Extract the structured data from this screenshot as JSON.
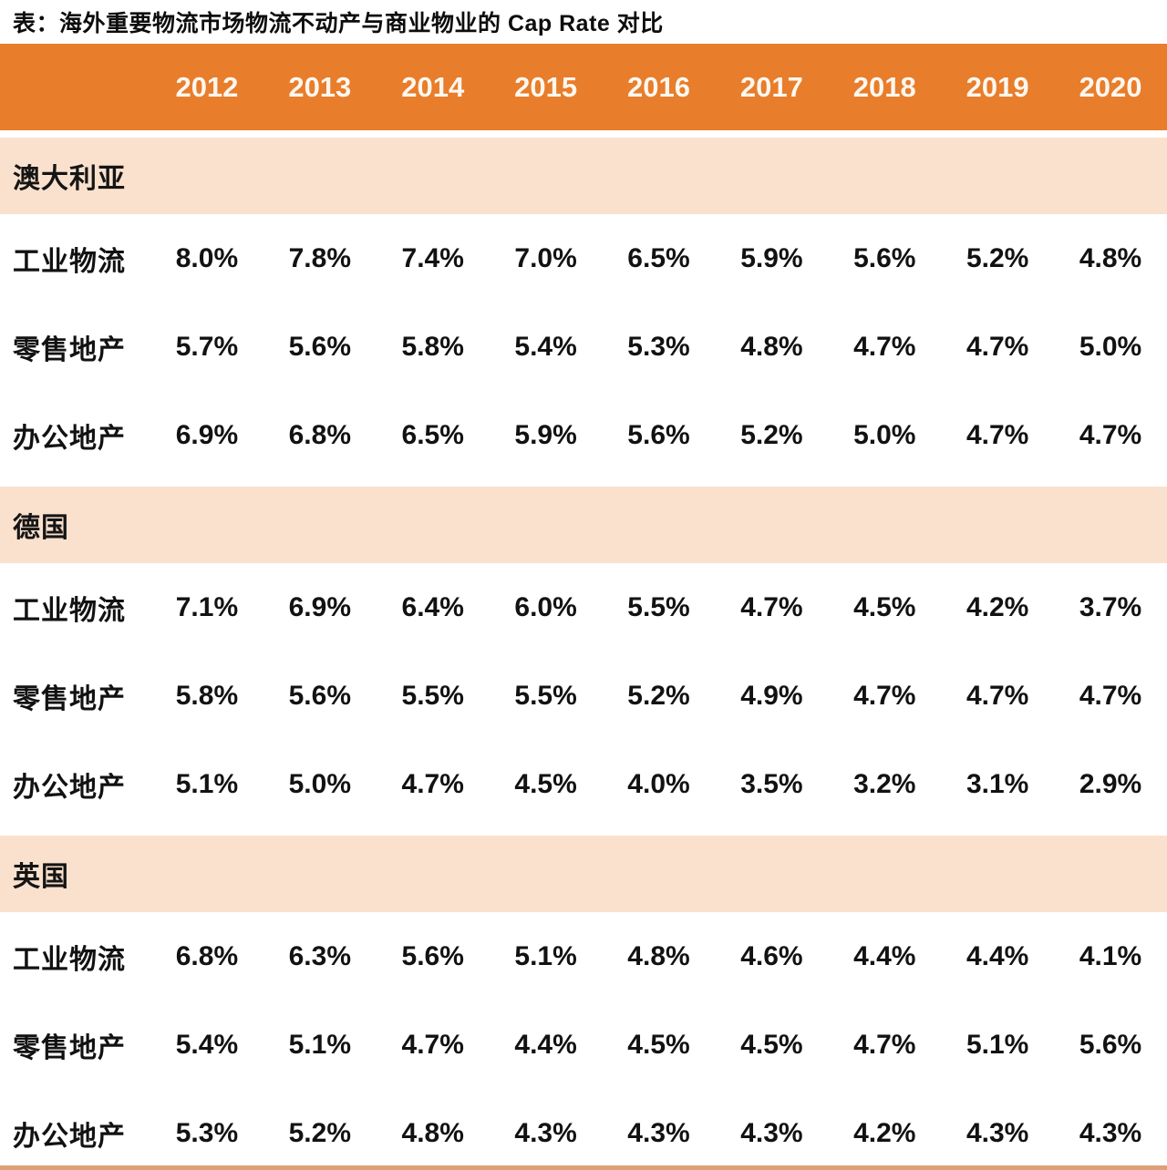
{
  "title": "表：海外重要物流市场物流不动产与商业物业的 Cap Rate 对比",
  "years": [
    "2012",
    "2013",
    "2014",
    "2015",
    "2016",
    "2017",
    "2018",
    "2019",
    "2020"
  ],
  "sections": [
    {
      "name": "澳大利亚",
      "rows": [
        {
          "label": "工业物流",
          "values": [
            "8.0%",
            "7.8%",
            "7.4%",
            "7.0%",
            "6.5%",
            "5.9%",
            "5.6%",
            "5.2%",
            "4.8%"
          ]
        },
        {
          "label": "零售地产",
          "values": [
            "5.7%",
            "5.6%",
            "5.8%",
            "5.4%",
            "5.3%",
            "4.8%",
            "4.7%",
            "4.7%",
            "5.0%"
          ]
        },
        {
          "label": "办公地产",
          "values": [
            "6.9%",
            "6.8%",
            "6.5%",
            "5.9%",
            "5.6%",
            "5.2%",
            "5.0%",
            "4.7%",
            "4.7%"
          ]
        }
      ]
    },
    {
      "name": "德国",
      "rows": [
        {
          "label": "工业物流",
          "values": [
            "7.1%",
            "6.9%",
            "6.4%",
            "6.0%",
            "5.5%",
            "4.7%",
            "4.5%",
            "4.2%",
            "3.7%"
          ]
        },
        {
          "label": "零售地产",
          "values": [
            "5.8%",
            "5.6%",
            "5.5%",
            "5.5%",
            "5.2%",
            "4.9%",
            "4.7%",
            "4.7%",
            "4.7%"
          ]
        },
        {
          "label": "办公地产",
          "values": [
            "5.1%",
            "5.0%",
            "4.7%",
            "4.5%",
            "4.0%",
            "3.5%",
            "3.2%",
            "3.1%",
            "2.9%"
          ]
        }
      ]
    },
    {
      "name": "英国",
      "rows": [
        {
          "label": "工业物流",
          "values": [
            "6.8%",
            "6.3%",
            "5.6%",
            "5.1%",
            "4.8%",
            "4.6%",
            "4.4%",
            "4.4%",
            "4.1%"
          ]
        },
        {
          "label": "零售地产",
          "values": [
            "5.4%",
            "5.1%",
            "4.7%",
            "4.4%",
            "4.5%",
            "4.5%",
            "4.7%",
            "5.1%",
            "5.6%"
          ]
        },
        {
          "label": "办公地产",
          "values": [
            "5.3%",
            "5.2%",
            "4.8%",
            "4.3%",
            "4.3%",
            "4.3%",
            "4.2%",
            "4.3%",
            "4.3%"
          ]
        }
      ]
    }
  ],
  "colors": {
    "header_bg": "#e87d2b",
    "section_band_bg": "#fae1cd",
    "row_bg": "#ffffff",
    "header_text": "#fdf7ef",
    "body_text": "#121212",
    "bottom_bar": "#dda078"
  },
  "chart_data": {
    "type": "table",
    "title": "表：海外重要物流市场物流不动产与商业物业的 Cap Rate 对比",
    "unit": "%",
    "categories": [
      "2012",
      "2013",
      "2014",
      "2015",
      "2016",
      "2017",
      "2018",
      "2019",
      "2020"
    ],
    "groups": [
      {
        "group": "澳大利亚",
        "series": [
          {
            "name": "工业物流",
            "values": [
              8.0,
              7.8,
              7.4,
              7.0,
              6.5,
              5.9,
              5.6,
              5.2,
              4.8
            ]
          },
          {
            "name": "零售地产",
            "values": [
              5.7,
              5.6,
              5.8,
              5.4,
              5.3,
              4.8,
              4.7,
              4.7,
              5.0
            ]
          },
          {
            "name": "办公地产",
            "values": [
              6.9,
              6.8,
              6.5,
              5.9,
              5.6,
              5.2,
              5.0,
              4.7,
              4.7
            ]
          }
        ]
      },
      {
        "group": "德国",
        "series": [
          {
            "name": "工业物流",
            "values": [
              7.1,
              6.9,
              6.4,
              6.0,
              5.5,
              4.7,
              4.5,
              4.2,
              3.7
            ]
          },
          {
            "name": "零售地产",
            "values": [
              5.8,
              5.6,
              5.5,
              5.5,
              5.2,
              4.9,
              4.7,
              4.7,
              4.7
            ]
          },
          {
            "name": "办公地产",
            "values": [
              5.1,
              5.0,
              4.7,
              4.5,
              4.0,
              3.5,
              3.2,
              3.1,
              2.9
            ]
          }
        ]
      },
      {
        "group": "英国",
        "series": [
          {
            "name": "工业物流",
            "values": [
              6.8,
              6.3,
              5.6,
              5.1,
              4.8,
              4.6,
              4.4,
              4.4,
              4.1
            ]
          },
          {
            "name": "零售地产",
            "values": [
              5.4,
              5.1,
              4.7,
              4.4,
              4.5,
              4.5,
              4.7,
              5.1,
              5.6
            ]
          },
          {
            "name": "办公地产",
            "values": [
              5.3,
              5.2,
              4.8,
              4.3,
              4.3,
              4.3,
              4.2,
              4.3,
              4.3
            ]
          }
        ]
      }
    ]
  }
}
